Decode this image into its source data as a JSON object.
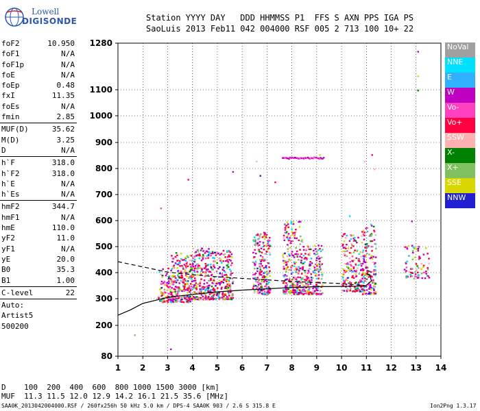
{
  "logo": {
    "line1": "Lowell",
    "line2": "DIGISONDE"
  },
  "header": {
    "row1": "Station YYYY DAY   DDD HHMMSS P1  FFS S AXN PPS IGA PS",
    "row2": "SaoLuis 2013 Feb11 042 004000 RSF 005 2 713 100 10+ 22"
  },
  "params": {
    "group1": [
      {
        "k": "foF2",
        "v": "10.950"
      },
      {
        "k": "foF1",
        "v": "N/A"
      },
      {
        "k": "foF1p",
        "v": "N/A"
      },
      {
        "k": "foE",
        "v": "N/A"
      },
      {
        "k": "foEp",
        "v": "0.48"
      },
      {
        "k": "fxI",
        "v": "11.35"
      },
      {
        "k": "foEs",
        "v": "N/A"
      },
      {
        "k": "fmin",
        "v": "2.85"
      }
    ],
    "group2": [
      {
        "k": "MUF(D)",
        "v": "35.62"
      },
      {
        "k": "M(D)",
        "v": "3.25"
      },
      {
        "k": "D",
        "v": "N/A"
      }
    ],
    "group3": [
      {
        "k": "h`F",
        "v": "318.0"
      },
      {
        "k": "h`F2",
        "v": "318.0"
      },
      {
        "k": "h`E",
        "v": "N/A"
      },
      {
        "k": "h`Es",
        "v": "N/A"
      }
    ],
    "group4": [
      {
        "k": "hmF2",
        "v": "344.7"
      },
      {
        "k": "hmF1",
        "v": "N/A"
      },
      {
        "k": "hmE",
        "v": "110.0"
      },
      {
        "k": "yF2",
        "v": "11.0"
      },
      {
        "k": "yF1",
        "v": "N/A"
      },
      {
        "k": "yE",
        "v": "20.0"
      },
      {
        "k": "B0",
        "v": "35.3"
      },
      {
        "k": "B1",
        "v": "1.00"
      }
    ],
    "group5": [
      {
        "k": "C-level",
        "v": "22"
      }
    ],
    "group6": [
      "Auto:",
      "Artist5",
      "500200"
    ]
  },
  "bottom": {
    "row1": "D    100  200  400  600  800 1000 1500 3000 [km]",
    "row2": "MUF  11.3 11.5 12.0 12.9 14.2 16.1 21.5 35.6 [MHz]",
    "footer_left": "SAA0K_2013042004000.RSF / 260fx256h 50 kHz 5.0 km / DPS-4 SAA0K 903 / 2.6 S 315.8 E",
    "footer_right": "Ion2Png 1.3.17"
  },
  "legend": [
    {
      "label": "NoVal",
      "color": "#a0a0a0"
    },
    {
      "label": "NNE",
      "color": "#00e0ff"
    },
    {
      "label": "E",
      "color": "#30b0ff"
    },
    {
      "label": "W",
      "color": "#c000c0"
    },
    {
      "label": "Vo-",
      "color": "#ff40c0"
    },
    {
      "label": "Vo+",
      "color": "#ff0040"
    },
    {
      "label": "SSW",
      "color": "#ffb0b0"
    },
    {
      "label": "X-",
      "color": "#008000"
    },
    {
      "label": "X+",
      "color": "#80c060"
    },
    {
      "label": "SSE",
      "color": "#d8d800"
    },
    {
      "label": "NNW",
      "color": "#2020d0"
    }
  ],
  "chart_data": {
    "type": "scatter",
    "xlabel": "",
    "ylabel": "",
    "x_ticks": [
      1,
      2,
      3,
      4,
      5,
      6,
      7,
      8,
      9,
      10,
      11,
      12,
      13,
      14
    ],
    "y_ticks": [
      80,
      200,
      300,
      400,
      500,
      600,
      700,
      800,
      900,
      1000,
      1100,
      1280
    ],
    "xlim": [
      1,
      14
    ],
    "ylim": [
      80,
      1280
    ],
    "clusters": [
      {
        "x": [
          2.6,
          3.1
        ],
        "y": [
          290,
          420
        ],
        "n": 90,
        "sx": 0,
        "sy": 0
      },
      {
        "x": [
          3.1,
          3.95
        ],
        "y": [
          290,
          480
        ],
        "n": 260
      },
      {
        "x": [
          3.95,
          4.75
        ],
        "y": [
          300,
          500
        ],
        "n": 240
      },
      {
        "x": [
          4.75,
          5.6
        ],
        "y": [
          300,
          490
        ],
        "n": 220
      },
      {
        "x": [
          6.4,
          7.1
        ],
        "y": [
          320,
          560
        ],
        "n": 220
      },
      {
        "x": [
          7.6,
          8.4
        ],
        "y": [
          320,
          600
        ],
        "n": 260
      },
      {
        "x": [
          8.4,
          9.2
        ],
        "y": [
          320,
          510
        ],
        "n": 200
      },
      {
        "x": [
          10.0,
          10.8
        ],
        "y": [
          330,
          560
        ],
        "n": 180
      },
      {
        "x": [
          10.8,
          11.35
        ],
        "y": [
          320,
          590
        ],
        "n": 170
      },
      {
        "x": [
          12.5,
          13.5
        ],
        "y": [
          380,
          510
        ],
        "n": 80
      }
    ],
    "sparse_points": [
      {
        "x": 1.65,
        "y": 165
      },
      {
        "x": 3.1,
        "y": 110
      },
      {
        "x": 13.05,
        "y": 1250
      },
      {
        "x": 13.05,
        "y": 1155
      },
      {
        "x": 13.05,
        "y": 1100
      },
      {
        "x": 6.7,
        "y": 775
      },
      {
        "x": 6.55,
        "y": 830
      },
      {
        "x": 11.2,
        "y": 855
      },
      {
        "x": 9.1,
        "y": 855
      },
      {
        "x": 3.8,
        "y": 760
      },
      {
        "x": 5.6,
        "y": 790
      },
      {
        "x": 2.7,
        "y": 650
      },
      {
        "x": 7.3,
        "y": 750
      },
      {
        "x": 10.3,
        "y": 620
      },
      {
        "x": 12.8,
        "y": 600
      },
      {
        "x": 11.3,
        "y": 800
      },
      {
        "x": 10.9,
        "y": 830
      }
    ],
    "streak_800": {
      "x": [
        7.6,
        9.25
      ],
      "y": 843
    },
    "profile_solid": [
      [
        1,
        238
      ],
      [
        1.5,
        258
      ],
      [
        2,
        282
      ],
      [
        3,
        305
      ],
      [
        4,
        316
      ],
      [
        5,
        326
      ],
      [
        6,
        333
      ],
      [
        7,
        338
      ],
      [
        8,
        343
      ],
      [
        9,
        346
      ],
      [
        10,
        347
      ],
      [
        10.95,
        348
      ]
    ],
    "profile_solid_curl": [
      [
        10.95,
        348
      ],
      [
        11.2,
        368
      ],
      [
        11.15,
        388
      ],
      [
        11.0,
        396
      ]
    ],
    "profile_dashed": [
      [
        1,
        442
      ],
      [
        2,
        422
      ],
      [
        3,
        402
      ],
      [
        4,
        392
      ],
      [
        5,
        384
      ],
      [
        6,
        378
      ],
      [
        7,
        372
      ],
      [
        8,
        366
      ],
      [
        9,
        362
      ],
      [
        10,
        358
      ],
      [
        10.95,
        350
      ]
    ]
  }
}
